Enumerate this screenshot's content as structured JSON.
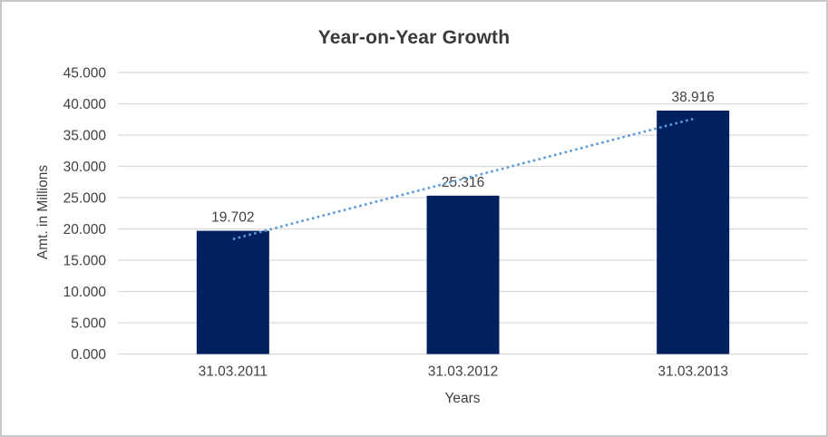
{
  "window": {
    "background": "#ffffff",
    "border_color": "#c8c8c8"
  },
  "chart_data": {
    "type": "bar",
    "title": "Year-on-Year Growth",
    "xlabel": "Years",
    "ylabel": "Amt. in Millions",
    "categories": [
      "31.03.2011",
      "31.03.2012",
      "31.03.2013"
    ],
    "values": [
      19.702,
      25.316,
      38.916
    ],
    "value_labels": [
      "19.702",
      "25.316",
      "38.916"
    ],
    "ylim": [
      0,
      45
    ],
    "y_tick_step": 5,
    "y_tick_labels": [
      "0.000",
      "5.000",
      "10.000",
      "15.000",
      "20.000",
      "25.000",
      "30.000",
      "35.000",
      "40.000",
      "45.000"
    ],
    "grid": true,
    "legend": "none",
    "trendline": {
      "style": "dotted",
      "from_value": 18.37,
      "to_value": 37.59
    },
    "colors": {
      "bar": "#002060",
      "trendline": "#5B9BD5",
      "gridline": "#D9D9D9",
      "text": "#404040"
    }
  }
}
